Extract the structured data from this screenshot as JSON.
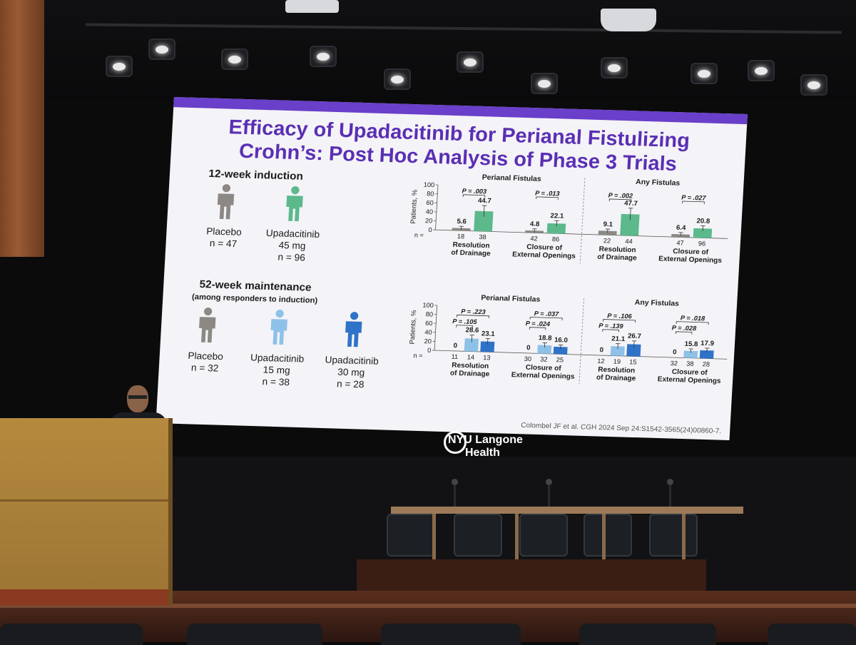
{
  "slide": {
    "title_line1": "Efficacy of Upadacitinib for Perianal Fistulizing",
    "title_line2": "Crohn’s: Post Hoc Analysis of Phase 3 Trials",
    "induction_heading": "12-week induction",
    "maintenance_heading": "52-week maintenance",
    "maintenance_subheading": "(among responders to induction)",
    "citation": "Colombel JF et al. CGH 2024 Sep 24:S1542-3565(24)00860-7.",
    "induction_groups": [
      {
        "line1": "Placebo",
        "line2": "n = 47",
        "line3": "",
        "color": "#8c8984"
      },
      {
        "line1": "Upadacitinib",
        "line2": "45 mg",
        "line3": "n = 96",
        "color": "#5bb98c"
      }
    ],
    "maintenance_groups": [
      {
        "line1": "Placebo",
        "line2": "n = 32",
        "line3": "",
        "color": "#8c8984"
      },
      {
        "line1": "Upadacitinib",
        "line2": "15 mg",
        "line3": "n = 38",
        "color": "#8ec1e8"
      },
      {
        "line1": "Upadacitinib",
        "line2": "30 mg",
        "line3": "n = 28",
        "color": "#2f73c9"
      }
    ]
  },
  "chart_data": [
    {
      "type": "bar",
      "ylabel": "Patients, %",
      "ylim": [
        0,
        100
      ],
      "yticks": [
        "0",
        "20",
        "40",
        "60",
        "80",
        "100"
      ],
      "n_label": "n =",
      "section_titles": [
        "Perianal Fistulas",
        "Any Fistulas"
      ],
      "colors": [
        "#8c8984",
        "#5bb98c"
      ],
      "groups": [
        {
          "label1": "Resolution",
          "label2": "of Drainage",
          "values": [
            5.6,
            44.7
          ],
          "value_labels": [
            "5.6",
            "44.7"
          ],
          "n": [
            "18",
            "38"
          ],
          "p_values": [
            "P = .003"
          ]
        },
        {
          "label1": "Closure of",
          "label2": "External Openings",
          "values": [
            4.8,
            22.1
          ],
          "value_labels": [
            "4.8",
            "22.1"
          ],
          "n": [
            "42",
            "86"
          ],
          "p_values": [
            "P = .013"
          ]
        },
        {
          "label1": "Resolution",
          "label2": "of Drainage",
          "values": [
            9.1,
            47.7
          ],
          "value_labels": [
            "9.1",
            "47.7"
          ],
          "n": [
            "22",
            "44"
          ],
          "p_values": [
            "P = .002"
          ]
        },
        {
          "label1": "Closure of",
          "label2": "External Openings",
          "values": [
            6.4,
            20.8
          ],
          "value_labels": [
            "6.4",
            "20.8"
          ],
          "n": [
            "47",
            "96"
          ],
          "p_values": [
            "P = .027"
          ]
        }
      ]
    },
    {
      "type": "bar",
      "ylabel": "Patients, %",
      "ylim": [
        0,
        100
      ],
      "yticks": [
        "0",
        "20",
        "40",
        "60",
        "80",
        "100"
      ],
      "n_label": "n =",
      "section_titles": [
        "Perianal Fistulas",
        "Any Fistulas"
      ],
      "colors": [
        "#8c8984",
        "#8ec1e8",
        "#2f73c9"
      ],
      "groups": [
        {
          "label1": "Resolution",
          "label2": "of Drainage",
          "values": [
            0,
            28.6,
            23.1
          ],
          "value_labels": [
            "0",
            "28.6",
            "23.1"
          ],
          "n": [
            "11",
            "14",
            "13"
          ],
          "p_values": [
            "P = .223",
            "P = .105"
          ]
        },
        {
          "label1": "Closure of",
          "label2": "External Openings",
          "values": [
            0,
            18.8,
            16.0
          ],
          "value_labels": [
            "0",
            "18.8",
            "16.0"
          ],
          "n": [
            "30",
            "32",
            "25"
          ],
          "p_values": [
            "P = .037",
            "P = .024"
          ]
        },
        {
          "label1": "Resolution",
          "label2": "of Drainage",
          "values": [
            0,
            21.1,
            26.7
          ],
          "value_labels": [
            "0",
            "21.1",
            "26.7"
          ],
          "n": [
            "12",
            "19",
            "15"
          ],
          "p_values": [
            "P = .106",
            "P = .139"
          ]
        },
        {
          "label1": "Closure of",
          "label2": "External Openings",
          "values": [
            0,
            15.8,
            17.9
          ],
          "value_labels": [
            "0",
            "15.8",
            "17.9"
          ],
          "n": [
            "32",
            "38",
            "28"
          ],
          "p_values": [
            "P = .018",
            "P = .028"
          ]
        }
      ]
    }
  ],
  "venue": {
    "logo_line1": "NYU Langone",
    "logo_line2": "Health"
  }
}
